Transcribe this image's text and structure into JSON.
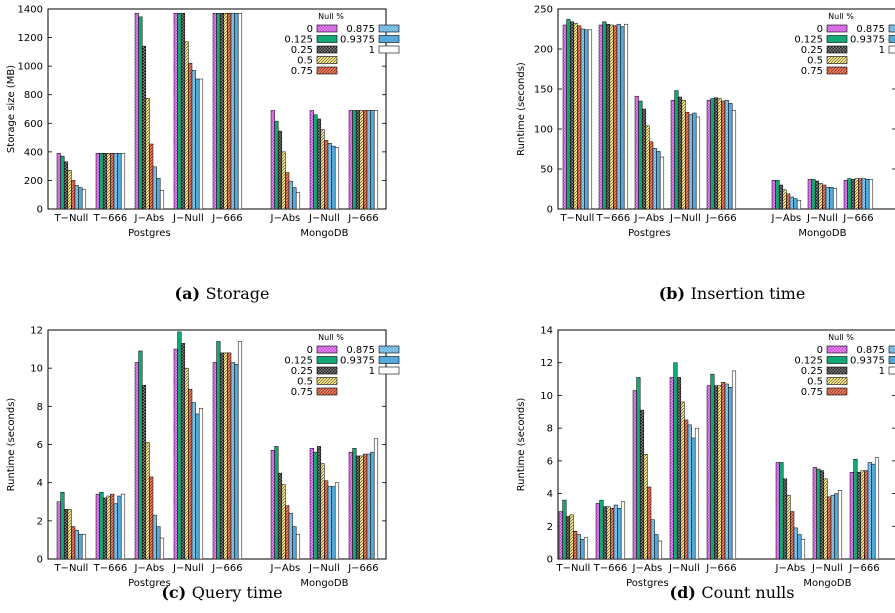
{
  "chart_data": [
    {
      "type": "bar",
      "caption_letter": "(a)",
      "caption_text": "Storage",
      "ylabel": "Storage size (MB)",
      "xlabel": "",
      "ylim": [
        0,
        1400
      ],
      "yticks": [
        0,
        200,
        400,
        600,
        800,
        1000,
        1200,
        1400
      ],
      "legend_title": "Null %",
      "legend_position": "top-right",
      "series_names": [
        "0",
        "0.125",
        "0.25",
        "0.5",
        "0.75",
        "0.875",
        "0.9375",
        "1"
      ],
      "groups": [
        {
          "label": "Postgres",
          "categories": [
            {
              "label": "T−Null",
              "values": [
                390,
                370,
                330,
                270,
                200,
                165,
                150,
                135
              ]
            },
            {
              "label": "T−666",
              "values": [
                390,
                390,
                390,
                390,
                390,
                390,
                390,
                390
              ]
            },
            {
              "label": "J−Abs",
              "values": [
                1370,
                1345,
                1140,
                775,
                455,
                295,
                215,
                130
              ]
            },
            {
              "label": "J−Null",
              "values": [
                1370,
                1370,
                1370,
                1170,
                1020,
                970,
                910,
                910
              ]
            },
            {
              "label": "J−666",
              "values": [
                1370,
                1370,
                1370,
                1370,
                1370,
                1370,
                1370,
                1370
              ]
            }
          ]
        },
        {
          "label": "MongoDB",
          "categories": [
            {
              "label": "J−Abs",
              "values": [
                690,
                615,
                545,
                400,
                255,
                195,
                150,
                115
              ]
            },
            {
              "label": "J−Null",
              "values": [
                690,
                660,
                630,
                555,
                480,
                460,
                440,
                430
              ]
            },
            {
              "label": "J−666",
              "values": [
                690,
                690,
                690,
                690,
                690,
                690,
                690,
                690
              ]
            }
          ]
        }
      ]
    },
    {
      "type": "bar",
      "caption_letter": "(b)",
      "caption_text": "Insertion time",
      "ylabel": "Runtime (seconds)",
      "xlabel": "",
      "ylim": [
        0,
        250
      ],
      "yticks": [
        0,
        50,
        100,
        150,
        200,
        250
      ],
      "legend_title": "Null %",
      "legend_position": "top-right",
      "series_names": [
        "0",
        "0.125",
        "0.25",
        "0.5",
        "0.75",
        "0.875",
        "0.9375",
        "1"
      ],
      "groups": [
        {
          "label": "Postgres",
          "categories": [
            {
              "label": "T−Null",
              "values": [
                230,
                237,
                234,
                232,
                229,
                225,
                224,
                224
              ]
            },
            {
              "label": "T−666",
              "values": [
                230,
                234,
                231,
                230,
                229,
                231,
                228,
                231
              ]
            },
            {
              "label": "J−Abs",
              "values": [
                141,
                135,
                125,
                104,
                84,
                76,
                72,
                65
              ]
            },
            {
              "label": "J−Null",
              "values": [
                136,
                148,
                140,
                136,
                121,
                118,
                120,
                115
              ]
            },
            {
              "label": "J−666",
              "values": [
                136,
                138,
                139,
                138,
                135,
                136,
                132,
                123
              ]
            }
          ]
        },
        {
          "label": "MongoDB",
          "categories": [
            {
              "label": "J−Abs",
              "values": [
                36,
                36,
                30,
                24,
                19,
                15,
                13,
                11
              ]
            },
            {
              "label": "J−Null",
              "values": [
                37,
                37,
                35,
                32,
                30,
                27,
                27,
                26
              ]
            },
            {
              "label": "J−666",
              "values": [
                36,
                38,
                37,
                38,
                38,
                38,
                37,
                37
              ]
            }
          ]
        }
      ]
    },
    {
      "type": "bar",
      "caption_letter": "(c)",
      "caption_text": "Query time",
      "ylabel": "Runtime (seconds)",
      "xlabel": "",
      "ylim": [
        0,
        12
      ],
      "yticks": [
        0,
        2,
        4,
        6,
        8,
        10,
        12
      ],
      "legend_title": "Null %",
      "legend_position": "top-right",
      "series_names": [
        "0",
        "0.125",
        "0.25",
        "0.5",
        "0.75",
        "0.875",
        "0.9375",
        "1"
      ],
      "groups": [
        {
          "label": "Postgres",
          "categories": [
            {
              "label": "T−Null",
              "values": [
                3.0,
                3.5,
                2.6,
                2.6,
                1.7,
                1.5,
                1.3,
                1.3
              ]
            },
            {
              "label": "T−666",
              "values": [
                3.4,
                3.5,
                3.2,
                3.3,
                3.4,
                2.9,
                3.3,
                3.4
              ]
            },
            {
              "label": "J−Abs",
              "values": [
                10.3,
                10.9,
                9.1,
                6.1,
                4.3,
                2.3,
                1.7,
                1.1
              ]
            },
            {
              "label": "J−Null",
              "values": [
                11.0,
                11.9,
                11.3,
                10.0,
                8.9,
                8.2,
                7.6,
                7.9
              ]
            },
            {
              "label": "J−666",
              "values": [
                10.3,
                11.4,
                10.8,
                10.8,
                10.8,
                10.3,
                10.2,
                11.4
              ]
            }
          ]
        },
        {
          "label": "MongoDB",
          "categories": [
            {
              "label": "J−Abs",
              "values": [
                5.7,
                5.9,
                4.5,
                3.9,
                2.8,
                2.4,
                1.7,
                1.3
              ]
            },
            {
              "label": "J−Null",
              "values": [
                5.8,
                5.6,
                5.9,
                5.0,
                4.1,
                3.8,
                3.8,
                4.0
              ]
            },
            {
              "label": "J−666",
              "values": [
                5.6,
                5.8,
                5.4,
                5.4,
                5.5,
                5.5,
                5.6,
                6.3
              ]
            }
          ]
        }
      ]
    },
    {
      "type": "bar",
      "caption_letter": "(d)",
      "caption_text": "Count nulls",
      "ylabel": "Runtime (seconds)",
      "xlabel": "",
      "ylim": [
        0,
        14
      ],
      "yticks": [
        0,
        2,
        4,
        6,
        8,
        10,
        12,
        14
      ],
      "legend_title": "Null %",
      "legend_position": "top-right",
      "series_names": [
        "0",
        "0.125",
        "0.25",
        "0.5",
        "0.75",
        "0.875",
        "0.9375",
        "1"
      ],
      "groups": [
        {
          "label": "Postgres",
          "categories": [
            {
              "label": "T−Null",
              "values": [
                2.9,
                3.6,
                2.6,
                2.7,
                1.7,
                1.5,
                1.2,
                1.3
              ]
            },
            {
              "label": "T−666",
              "values": [
                3.4,
                3.6,
                3.2,
                3.2,
                3.1,
                3.3,
                3.1,
                3.5
              ]
            },
            {
              "label": "J−Abs",
              "values": [
                10.3,
                11.1,
                9.1,
                6.4,
                4.4,
                2.4,
                1.5,
                1.1
              ]
            },
            {
              "label": "J−Null",
              "values": [
                11.1,
                12.0,
                11.1,
                9.6,
                8.5,
                8.2,
                7.4,
                8.0
              ]
            },
            {
              "label": "J−666",
              "values": [
                10.6,
                11.3,
                10.6,
                10.6,
                10.8,
                10.7,
                10.5,
                11.5
              ]
            }
          ]
        },
        {
          "label": "MongoDB",
          "categories": [
            {
              "label": "J−Abs",
              "values": [
                5.9,
                5.9,
                4.9,
                3.9,
                2.9,
                1.9,
                1.5,
                1.2
              ]
            },
            {
              "label": "J−Null",
              "values": [
                5.6,
                5.5,
                5.4,
                4.9,
                3.8,
                3.9,
                4.0,
                4.2
              ]
            },
            {
              "label": "J−666",
              "values": [
                5.3,
                6.1,
                5.3,
                5.4,
                5.4,
                5.9,
                5.8,
                6.2
              ]
            }
          ]
        }
      ]
    }
  ],
  "series_style": [
    {
      "fill": "#cc44dd",
      "pattern": "check"
    },
    {
      "fill": "#11aa77",
      "pattern": "solid"
    },
    {
      "fill": "#222222",
      "pattern": "check"
    },
    {
      "fill": "#ffee88",
      "pattern": "hatch"
    },
    {
      "fill": "#ff7755",
      "pattern": "hatch"
    },
    {
      "fill": "#55aadd",
      "pattern": "check"
    },
    {
      "fill": "#55aadd",
      "pattern": "solid"
    },
    {
      "fill": "#ffffff",
      "pattern": "solid"
    }
  ]
}
